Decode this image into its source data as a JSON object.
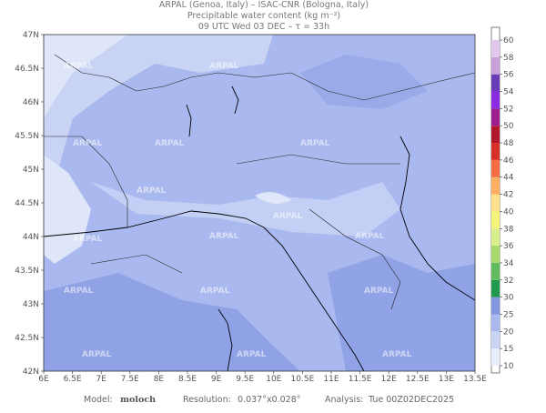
{
  "header": {
    "line1": "ARPAL (Genoa, Italy)  –  ISAC-CNR (Bologna, Italy)",
    "line2": "Precipitable water content (kg m⁻²)",
    "line3": "09 UTC Wed 03 DEC  –  τ = 33h"
  },
  "map": {
    "watermark": "ARPAL",
    "lon_labels": [
      "6E",
      "6.5E",
      "7E",
      "7.5E",
      "8E",
      "8.5E",
      "9E",
      "9.5E",
      "10E",
      "10.5E",
      "11E",
      "11.5E",
      "12E",
      "12.5E",
      "13E",
      "13.5E"
    ],
    "lat_labels": [
      "42N",
      "42.5N",
      "43N",
      "43.5N",
      "44N",
      "44.5N",
      "45N",
      "45.5N",
      "46N",
      "46.5N",
      "47N"
    ]
  },
  "colorbar": {
    "labels": [
      10,
      15,
      20,
      25,
      30,
      32,
      34,
      36,
      38,
      40,
      42,
      44,
      46,
      48,
      50,
      52,
      54,
      56,
      58,
      60
    ],
    "colors": [
      "#e8edfb",
      "#c9d4f5",
      "#a9b8ee",
      "#8296e2",
      "#1f9a4c",
      "#63bb5f",
      "#a6d96a",
      "#d9ef8b",
      "#f4f47a",
      "#fee08b",
      "#fdae61",
      "#f46d43",
      "#d73027",
      "#b2182b",
      "#9e1f8e",
      "#8a2be2",
      "#6a3db8",
      "#c9a0dc",
      "#e0c8ec"
    ]
  },
  "footer": {
    "model_label": "Model:",
    "model": "moloch",
    "resolution_label": "Resolution:",
    "resolution": "0.037°x0.028°",
    "analysis_label": "Analysis:",
    "analysis": "Tue 00Z02DEC2025"
  }
}
